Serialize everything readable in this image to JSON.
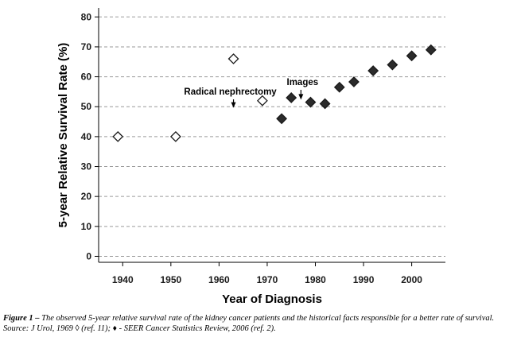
{
  "chart_data": {
    "type": "scatter",
    "xlabel": "Year of Diagnosis",
    "ylabel": "5-year Relative Survival Rate (%)",
    "xlim": [
      1935,
      2007
    ],
    "ylim": [
      -2,
      83
    ],
    "xticks": [
      1940,
      1950,
      1960,
      1970,
      1980,
      1990,
      2000
    ],
    "yticks": [
      0,
      10,
      20,
      30,
      40,
      50,
      60,
      70,
      80
    ],
    "grid": "horizontal dashed",
    "series": [
      {
        "marker": "open-diamond",
        "color": "#ffffff",
        "points": [
          {
            "x": 1939,
            "y": 40
          },
          {
            "x": 1951,
            "y": 40
          },
          {
            "x": 1963,
            "y": 66
          },
          {
            "x": 1969,
            "y": 52
          }
        ]
      },
      {
        "marker": "filled-diamond",
        "color": "#2b2b2b",
        "points": [
          {
            "x": 1973,
            "y": 46
          },
          {
            "x": 1975,
            "y": 53
          },
          {
            "x": 1979,
            "y": 51.5
          },
          {
            "x": 1982,
            "y": 51
          },
          {
            "x": 1985,
            "y": 56.5
          },
          {
            "x": 1988,
            "y": 58.3
          },
          {
            "x": 1992,
            "y": 62
          },
          {
            "x": 1996,
            "y": 64
          },
          {
            "x": 2000,
            "y": 67
          },
          {
            "x": 2004,
            "y": 69
          }
        ]
      }
    ],
    "annotations": [
      {
        "text": "Radical nephrectomy",
        "x": 1963,
        "y": 52.3
      },
      {
        "text": "Images",
        "x": 1977,
        "y": 55
      }
    ]
  },
  "caption": {
    "label": "Figure 1 –",
    "text": " The observed 5-year relative survival rate of the kidney cancer patients and the historical facts responsible for a better rate of survival. Source: J Urol, 1969 ◊ (ref. 11); ♦ - SEER Cancer Statistics Review, 2006 (ref. 2)."
  }
}
